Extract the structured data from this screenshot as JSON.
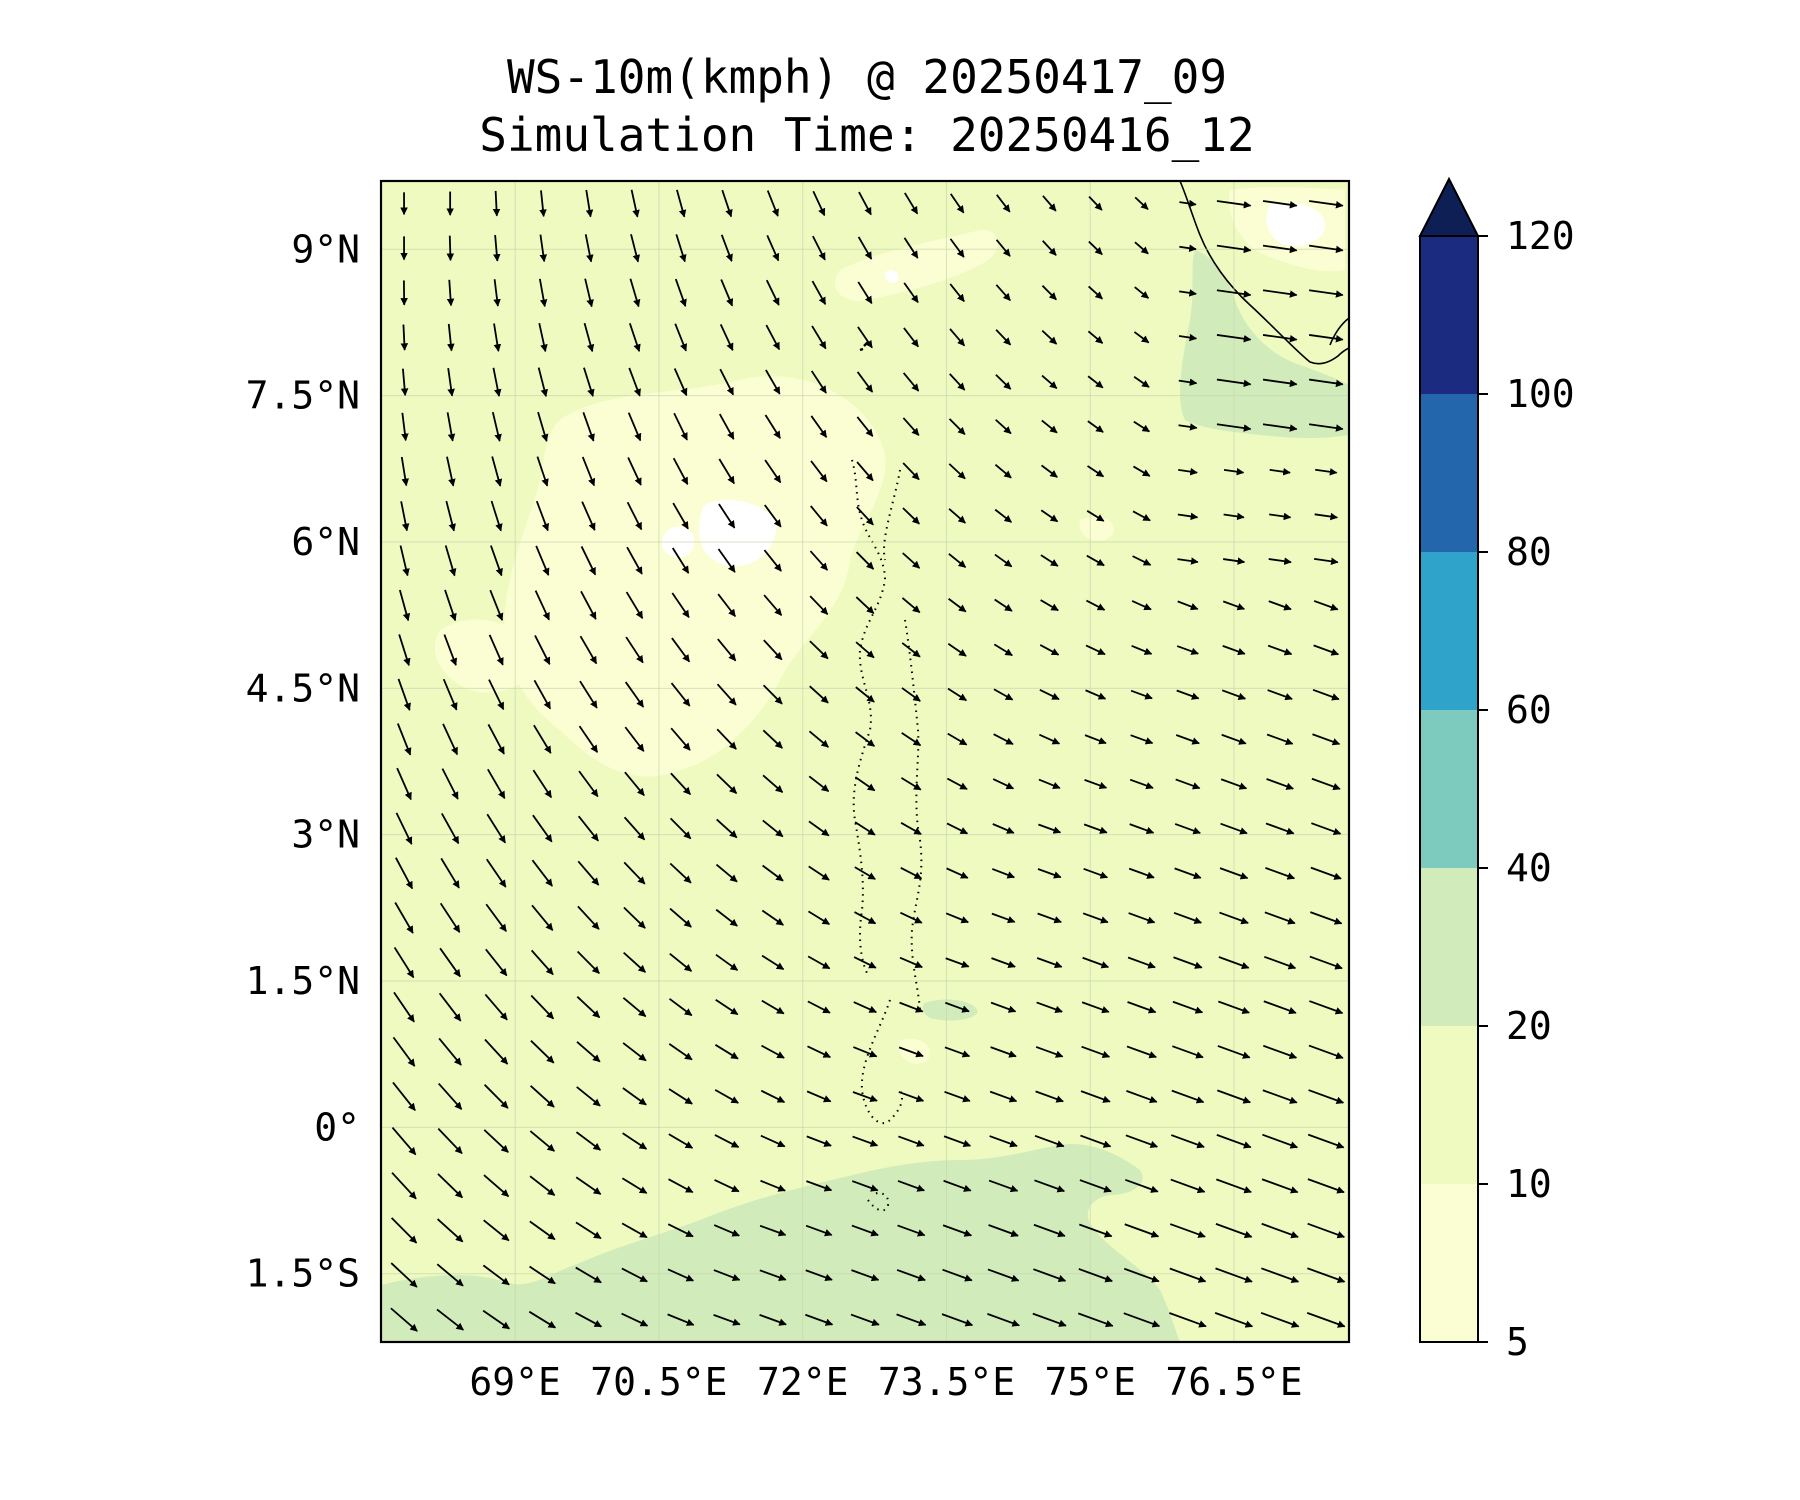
{
  "title": {
    "line1": "WS-10m(kmph) @ 20250417_09",
    "line2": "Simulation Time: 20250416_12"
  },
  "map": {
    "lon_range": [
      67.6,
      77.7
    ],
    "lat_range": [
      -2.2,
      9.7
    ],
    "lat_ticks": [
      {
        "value": 9,
        "label": "9°N"
      },
      {
        "value": 7.5,
        "label": "7.5°N"
      },
      {
        "value": 6,
        "label": "6°N"
      },
      {
        "value": 4.5,
        "label": "4.5°N"
      },
      {
        "value": 3,
        "label": "3°N"
      },
      {
        "value": 1.5,
        "label": "1.5°N"
      },
      {
        "value": 0,
        "label": "0°"
      },
      {
        "value": -1.5,
        "label": "1.5°S"
      }
    ],
    "lon_ticks": [
      {
        "value": 69,
        "label": "69°E"
      },
      {
        "value": 70.5,
        "label": "70.5°E"
      },
      {
        "value": 72,
        "label": "72°E"
      },
      {
        "value": 73.5,
        "label": "73.5°E"
      },
      {
        "value": 75,
        "label": "75°E"
      },
      {
        "value": 76.5,
        "label": "76.5°E"
      }
    ],
    "background_class_color": "#eefac0",
    "calm_color": "#fbfed3",
    "strong_color": "#d1ecba",
    "arrow_color": "#000000"
  },
  "colorbar": {
    "levels": [
      5,
      10,
      20,
      40,
      60,
      80,
      100,
      120
    ],
    "labels": [
      "5",
      "10",
      "20",
      "40",
      "60",
      "80",
      "100",
      "120"
    ],
    "colors": [
      "#fbfed3",
      "#eefac0",
      "#d1ecba",
      "#7dcbbe",
      "#2fa3c9",
      "#2466ac",
      "#1b2c80"
    ],
    "extend_color": "#0d1f55",
    "extend": "max"
  }
}
